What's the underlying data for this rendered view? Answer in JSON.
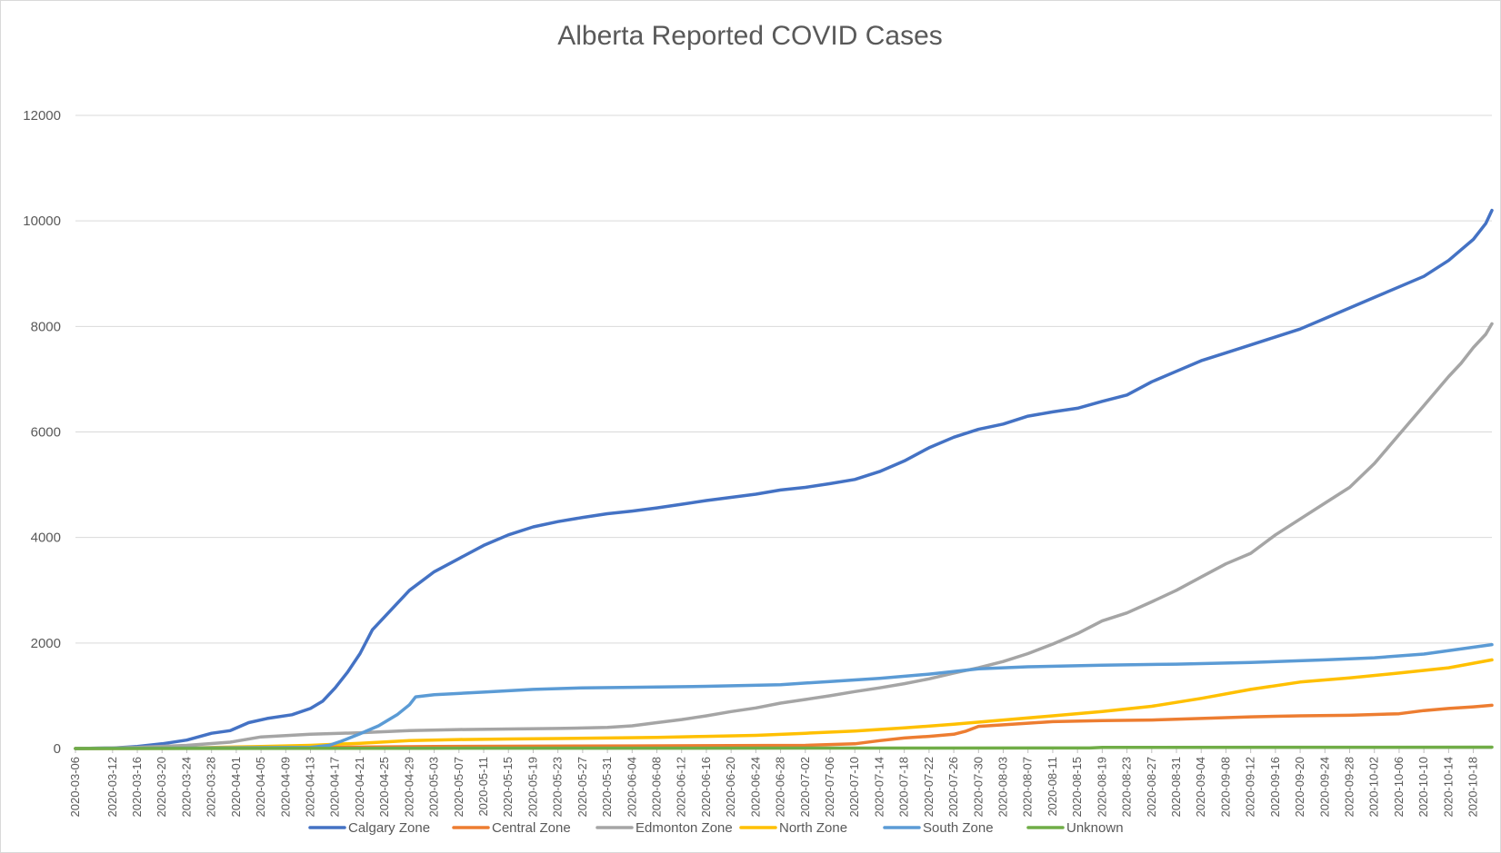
{
  "chart_data": {
    "type": "line",
    "title": "Alberta Reported COVID Cases",
    "xlabel": "",
    "ylabel": "",
    "ylim": [
      0,
      12000
    ],
    "yticks": [
      0,
      2000,
      4000,
      6000,
      8000,
      10000,
      12000
    ],
    "x_start": "2020-03-06",
    "x_end": "2020-10-21",
    "xtick_labels": [
      "2020-03-06",
      "2020-03-12",
      "2020-03-16",
      "2020-03-20",
      "2020-03-24",
      "2020-03-28",
      "2020-04-01",
      "2020-04-05",
      "2020-04-09",
      "2020-04-13",
      "2020-04-17",
      "2020-04-21",
      "2020-04-25",
      "2020-04-29",
      "2020-05-03",
      "2020-05-07",
      "2020-05-11",
      "2020-05-15",
      "2020-05-19",
      "2020-05-23",
      "2020-05-27",
      "2020-05-31",
      "2020-06-04",
      "2020-06-08",
      "2020-06-12",
      "2020-06-16",
      "2020-06-20",
      "2020-06-24",
      "2020-06-28",
      "2020-07-02",
      "2020-07-06",
      "2020-07-10",
      "2020-07-14",
      "2020-07-18",
      "2020-07-22",
      "2020-07-26",
      "2020-07-30",
      "2020-08-03",
      "2020-08-07",
      "2020-08-11",
      "2020-08-15",
      "2020-08-19",
      "2020-08-23",
      "2020-08-27",
      "2020-08-31",
      "2020-09-04",
      "2020-09-08",
      "2020-09-12",
      "2020-09-16",
      "2020-09-20",
      "2020-09-24",
      "2020-09-28",
      "2020-10-02",
      "2020-10-06",
      "2020-10-10",
      "2020-10-14",
      "2020-10-18"
    ],
    "grid": true,
    "legend_position": "bottom",
    "series": [
      {
        "name": "Calgary Zone",
        "color": "#4472C4",
        "points": [
          [
            "2020-03-06",
            0
          ],
          [
            "2020-03-12",
            10
          ],
          [
            "2020-03-16",
            40
          ],
          [
            "2020-03-20",
            90
          ],
          [
            "2020-03-24",
            160
          ],
          [
            "2020-03-28",
            290
          ],
          [
            "2020-03-31",
            340
          ],
          [
            "2020-04-03",
            490
          ],
          [
            "2020-04-06",
            570
          ],
          [
            "2020-04-10",
            640
          ],
          [
            "2020-04-13",
            760
          ],
          [
            "2020-04-15",
            900
          ],
          [
            "2020-04-17",
            1150
          ],
          [
            "2020-04-19",
            1450
          ],
          [
            "2020-04-21",
            1800
          ],
          [
            "2020-04-23",
            2250
          ],
          [
            "2020-04-25",
            2500
          ],
          [
            "2020-04-27",
            2750
          ],
          [
            "2020-04-29",
            3000
          ],
          [
            "2020-05-03",
            3350
          ],
          [
            "2020-05-07",
            3600
          ],
          [
            "2020-05-11",
            3850
          ],
          [
            "2020-05-15",
            4050
          ],
          [
            "2020-05-19",
            4200
          ],
          [
            "2020-05-23",
            4300
          ],
          [
            "2020-05-27",
            4380
          ],
          [
            "2020-05-31",
            4450
          ],
          [
            "2020-06-04",
            4500
          ],
          [
            "2020-06-08",
            4560
          ],
          [
            "2020-06-12",
            4630
          ],
          [
            "2020-06-16",
            4700
          ],
          [
            "2020-06-20",
            4760
          ],
          [
            "2020-06-24",
            4820
          ],
          [
            "2020-06-28",
            4900
          ],
          [
            "2020-07-02",
            4950
          ],
          [
            "2020-07-06",
            5020
          ],
          [
            "2020-07-10",
            5100
          ],
          [
            "2020-07-14",
            5250
          ],
          [
            "2020-07-18",
            5450
          ],
          [
            "2020-07-22",
            5700
          ],
          [
            "2020-07-26",
            5900
          ],
          [
            "2020-07-30",
            6050
          ],
          [
            "2020-08-03",
            6150
          ],
          [
            "2020-08-07",
            6300
          ],
          [
            "2020-08-11",
            6380
          ],
          [
            "2020-08-15",
            6450
          ],
          [
            "2020-08-19",
            6580
          ],
          [
            "2020-08-23",
            6700
          ],
          [
            "2020-08-27",
            6950
          ],
          [
            "2020-08-31",
            7150
          ],
          [
            "2020-09-04",
            7350
          ],
          [
            "2020-09-08",
            7500
          ],
          [
            "2020-09-12",
            7650
          ],
          [
            "2020-09-16",
            7800
          ],
          [
            "2020-09-20",
            7950
          ],
          [
            "2020-09-24",
            8150
          ],
          [
            "2020-09-28",
            8350
          ],
          [
            "2020-10-02",
            8550
          ],
          [
            "2020-10-06",
            8750
          ],
          [
            "2020-10-10",
            8950
          ],
          [
            "2020-10-14",
            9250
          ],
          [
            "2020-10-16",
            9450
          ],
          [
            "2020-10-18",
            9650
          ],
          [
            "2020-10-20",
            9950
          ],
          [
            "2020-10-21",
            10200
          ]
        ]
      },
      {
        "name": "Central Zone",
        "color": "#ED7D31",
        "points": [
          [
            "2020-03-06",
            0
          ],
          [
            "2020-03-24",
            5
          ],
          [
            "2020-04-13",
            20
          ],
          [
            "2020-05-03",
            40
          ],
          [
            "2020-06-04",
            50
          ],
          [
            "2020-07-02",
            60
          ],
          [
            "2020-07-10",
            90
          ],
          [
            "2020-07-14",
            150
          ],
          [
            "2020-07-18",
            200
          ],
          [
            "2020-07-22",
            230
          ],
          [
            "2020-07-26",
            270
          ],
          [
            "2020-07-28",
            330
          ],
          [
            "2020-07-30",
            420
          ],
          [
            "2020-08-03",
            450
          ],
          [
            "2020-08-07",
            480
          ],
          [
            "2020-08-11",
            510
          ],
          [
            "2020-08-19",
            530
          ],
          [
            "2020-08-27",
            540
          ],
          [
            "2020-09-04",
            570
          ],
          [
            "2020-09-12",
            600
          ],
          [
            "2020-09-20",
            620
          ],
          [
            "2020-09-28",
            630
          ],
          [
            "2020-10-06",
            660
          ],
          [
            "2020-10-10",
            720
          ],
          [
            "2020-10-14",
            760
          ],
          [
            "2020-10-18",
            790
          ],
          [
            "2020-10-21",
            820
          ]
        ]
      },
      {
        "name": "Edmonton Zone",
        "color": "#A5A5A5",
        "points": [
          [
            "2020-03-06",
            0
          ],
          [
            "2020-03-16",
            20
          ],
          [
            "2020-03-24",
            60
          ],
          [
            "2020-03-31",
            120
          ],
          [
            "2020-04-05",
            220
          ],
          [
            "2020-04-13",
            270
          ],
          [
            "2020-04-21",
            300
          ],
          [
            "2020-04-29",
            340
          ],
          [
            "2020-05-07",
            360
          ],
          [
            "2020-05-15",
            370
          ],
          [
            "2020-05-23",
            380
          ],
          [
            "2020-05-31",
            400
          ],
          [
            "2020-06-04",
            430
          ],
          [
            "2020-06-08",
            490
          ],
          [
            "2020-06-12",
            550
          ],
          [
            "2020-06-16",
            620
          ],
          [
            "2020-06-20",
            700
          ],
          [
            "2020-06-24",
            770
          ],
          [
            "2020-06-28",
            860
          ],
          [
            "2020-07-02",
            930
          ],
          [
            "2020-07-06",
            1000
          ],
          [
            "2020-07-10",
            1080
          ],
          [
            "2020-07-14",
            1150
          ],
          [
            "2020-07-18",
            1230
          ],
          [
            "2020-07-22",
            1320
          ],
          [
            "2020-07-26",
            1430
          ],
          [
            "2020-07-30",
            1530
          ],
          [
            "2020-08-03",
            1650
          ],
          [
            "2020-08-07",
            1800
          ],
          [
            "2020-08-11",
            1980
          ],
          [
            "2020-08-15",
            2180
          ],
          [
            "2020-08-19",
            2420
          ],
          [
            "2020-08-23",
            2570
          ],
          [
            "2020-08-27",
            2780
          ],
          [
            "2020-08-31",
            3000
          ],
          [
            "2020-09-04",
            3250
          ],
          [
            "2020-09-08",
            3500
          ],
          [
            "2020-09-12",
            3700
          ],
          [
            "2020-09-16",
            4050
          ],
          [
            "2020-09-20",
            4350
          ],
          [
            "2020-09-24",
            4650
          ],
          [
            "2020-09-28",
            4950
          ],
          [
            "2020-10-02",
            5400
          ],
          [
            "2020-10-06",
            5950
          ],
          [
            "2020-10-10",
            6500
          ],
          [
            "2020-10-14",
            7050
          ],
          [
            "2020-10-16",
            7300
          ],
          [
            "2020-10-18",
            7600
          ],
          [
            "2020-10-20",
            7850
          ],
          [
            "2020-10-21",
            8050
          ]
        ]
      },
      {
        "name": "North Zone",
        "color": "#FFC000",
        "points": [
          [
            "2020-03-06",
            0
          ],
          [
            "2020-03-24",
            10
          ],
          [
            "2020-04-05",
            40
          ],
          [
            "2020-04-13",
            60
          ],
          [
            "2020-04-21",
            100
          ],
          [
            "2020-04-29",
            150
          ],
          [
            "2020-05-07",
            170
          ],
          [
            "2020-05-15",
            180
          ],
          [
            "2020-05-23",
            190
          ],
          [
            "2020-05-31",
            200
          ],
          [
            "2020-06-08",
            210
          ],
          [
            "2020-06-16",
            230
          ],
          [
            "2020-06-24",
            250
          ],
          [
            "2020-07-02",
            290
          ],
          [
            "2020-07-10",
            330
          ],
          [
            "2020-07-18",
            390
          ],
          [
            "2020-07-26",
            460
          ],
          [
            "2020-08-03",
            540
          ],
          [
            "2020-08-11",
            620
          ],
          [
            "2020-08-19",
            700
          ],
          [
            "2020-08-27",
            800
          ],
          [
            "2020-09-04",
            950
          ],
          [
            "2020-09-12",
            1120
          ],
          [
            "2020-09-20",
            1260
          ],
          [
            "2020-09-28",
            1340
          ],
          [
            "2020-10-06",
            1430
          ],
          [
            "2020-10-14",
            1530
          ],
          [
            "2020-10-21",
            1680
          ]
        ]
      },
      {
        "name": "South Zone",
        "color": "#5B9BD5",
        "points": [
          [
            "2020-03-06",
            0
          ],
          [
            "2020-04-13",
            20
          ],
          [
            "2020-04-16",
            60
          ],
          [
            "2020-04-18",
            140
          ],
          [
            "2020-04-21",
            280
          ],
          [
            "2020-04-24",
            430
          ],
          [
            "2020-04-27",
            640
          ],
          [
            "2020-04-29",
            830
          ],
          [
            "2020-04-30",
            980
          ],
          [
            "2020-05-03",
            1020
          ],
          [
            "2020-05-11",
            1070
          ],
          [
            "2020-05-19",
            1120
          ],
          [
            "2020-05-27",
            1150
          ],
          [
            "2020-06-04",
            1160
          ],
          [
            "2020-06-16",
            1180
          ],
          [
            "2020-06-28",
            1210
          ],
          [
            "2020-07-06",
            1270
          ],
          [
            "2020-07-14",
            1330
          ],
          [
            "2020-07-22",
            1410
          ],
          [
            "2020-07-30",
            1510
          ],
          [
            "2020-08-07",
            1550
          ],
          [
            "2020-08-19",
            1580
          ],
          [
            "2020-08-31",
            1600
          ],
          [
            "2020-09-12",
            1630
          ],
          [
            "2020-09-24",
            1680
          ],
          [
            "2020-10-02",
            1720
          ],
          [
            "2020-10-10",
            1790
          ],
          [
            "2020-10-21",
            1970
          ]
        ]
      },
      {
        "name": "Unknown",
        "color": "#70AD47",
        "points": [
          [
            "2020-03-06",
            0
          ],
          [
            "2020-05-01",
            5
          ],
          [
            "2020-08-17",
            10
          ],
          [
            "2020-08-19",
            20
          ],
          [
            "2020-10-21",
            25
          ]
        ]
      }
    ]
  }
}
